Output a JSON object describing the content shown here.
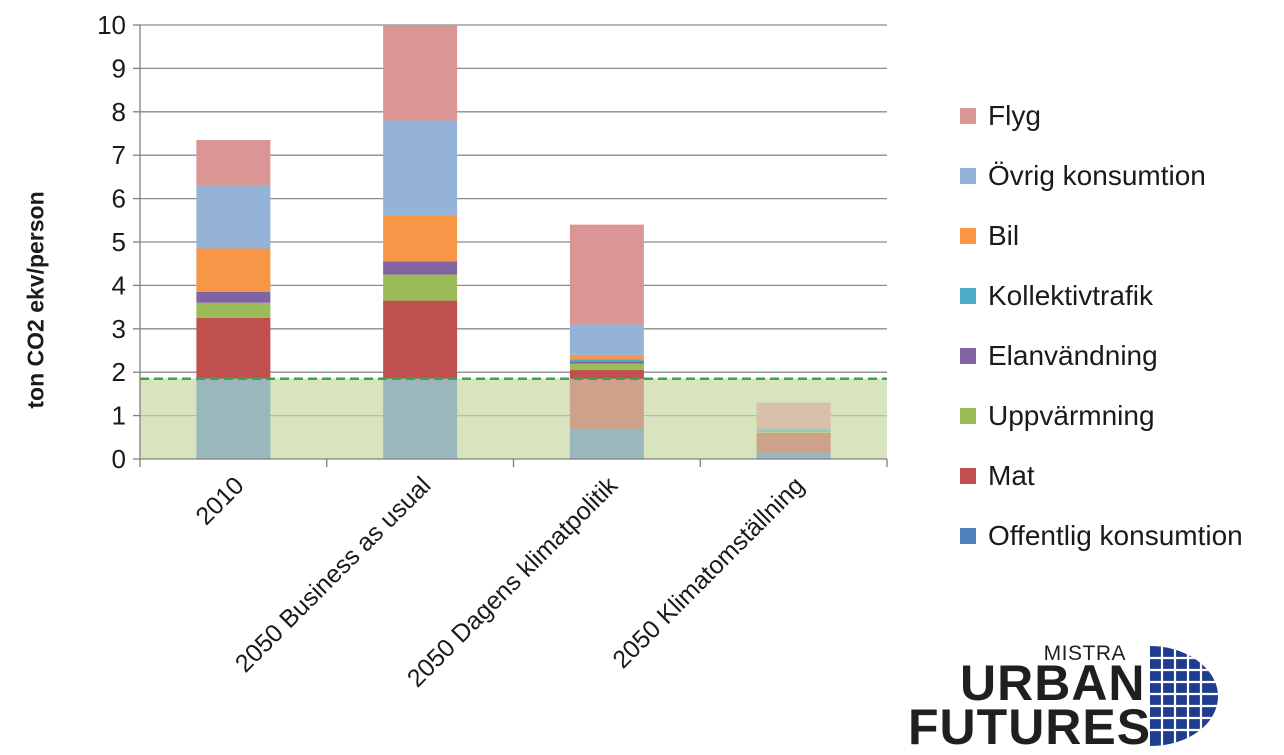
{
  "chart_data": {
    "type": "bar",
    "stacked": true,
    "ylabel": "ton CO2 ekv/person",
    "xlabel": "",
    "ylim": [
      0,
      10
    ],
    "yticks": [
      0,
      1,
      2,
      3,
      4,
      5,
      6,
      7,
      8,
      9,
      10
    ],
    "grid": true,
    "legend_position": "right",
    "categories": [
      "2010",
      "2050 Business as usual",
      "2050 Dagens klimatpolitik",
      "2050 Klimatomställning"
    ],
    "series": [
      {
        "name": "Offentlig konsumtion",
        "color": "#4f81bd",
        "values": [
          1.85,
          1.85,
          0.7,
          0.15
        ]
      },
      {
        "name": "Mat",
        "color": "#c0504d",
        "values": [
          1.4,
          1.8,
          1.35,
          0.45
        ]
      },
      {
        "name": "Uppvärmning",
        "color": "#9bbb59",
        "values": [
          0.35,
          0.6,
          0.15,
          0.03
        ]
      },
      {
        "name": "Elanvändning",
        "color": "#8064a2",
        "values": [
          0.25,
          0.3,
          0.05,
          0.02
        ]
      },
      {
        "name": "Kollektivtrafik",
        "color": "#4bacc6",
        "values": [
          0.0,
          0.0,
          0.05,
          0.05
        ]
      },
      {
        "name": "Bil",
        "color": "#f79646",
        "values": [
          1.0,
          1.05,
          0.1,
          0.0
        ]
      },
      {
        "name": "Övrig konsumtion",
        "color": "#95b3d7",
        "values": [
          1.45,
          2.2,
          0.7,
          0.0
        ]
      },
      {
        "name": "Flyg",
        "color": "#d99694",
        "values": [
          1.05,
          2.2,
          2.3,
          0.6
        ]
      }
    ],
    "reference_band": {
      "from": 0,
      "to": 1.85,
      "color": "#d7e4bd",
      "line_color": "#3fa34d"
    }
  },
  "legend_order": [
    "Flyg",
    "Övrig konsumtion",
    "Bil",
    "Kollektivtrafik",
    "Elanvändning",
    "Uppvärmning",
    "Mat",
    "Offentlig konsumtion"
  ],
  "logo": {
    "line1": "MISTRA",
    "line2": "URBAN",
    "line3": "FUTURES"
  },
  "colors": {
    "axis": "#7f7f7f",
    "grid": "#8c8c8c",
    "logo_blue": "#1f3d8f"
  }
}
